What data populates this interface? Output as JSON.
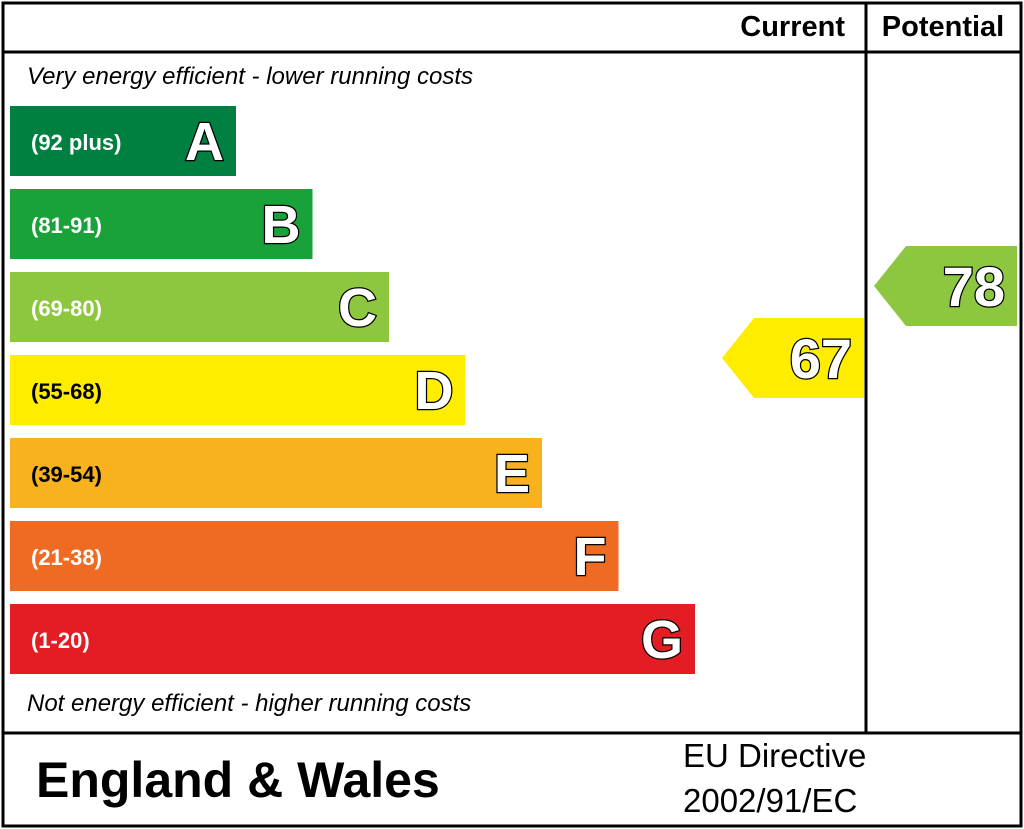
{
  "header": {
    "current_label": "Current",
    "potential_label": "Potential"
  },
  "top_note": "Very energy efficient - lower running costs",
  "bottom_note": "Not energy efficient - higher running costs",
  "footer": {
    "region": "England & Wales",
    "directive_line1": "EU Directive",
    "directive_line2": "2002/91/EC"
  },
  "chart_data": {
    "type": "bar",
    "bands": [
      {
        "letter": "A",
        "range": "(92 plus)",
        "min": 92,
        "max": 100,
        "color": "#008040"
      },
      {
        "letter": "B",
        "range": "(81-91)",
        "min": 81,
        "max": 91,
        "color": "#19a23a"
      },
      {
        "letter": "C",
        "range": "(69-80)",
        "min": 69,
        "max": 80,
        "color": "#8dc63f"
      },
      {
        "letter": "D",
        "range": "(55-68)",
        "min": 55,
        "max": 68,
        "color": "#ffed00"
      },
      {
        "letter": "E",
        "range": "(39-54)",
        "min": 39,
        "max": 54,
        "color": "#f7b21e"
      },
      {
        "letter": "F",
        "range": "(21-38)",
        "min": 21,
        "max": 38,
        "color": "#ef6b24"
      },
      {
        "letter": "G",
        "range": "(1-20)",
        "min": 1,
        "max": 20,
        "color": "#e31d23"
      }
    ],
    "current": {
      "value": 67,
      "band": "D",
      "color": "#ffed00"
    },
    "potential": {
      "value": 78,
      "band": "C",
      "color": "#8dc63f"
    }
  }
}
